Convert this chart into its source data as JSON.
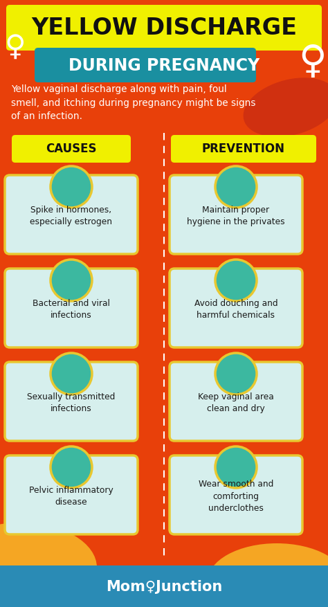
{
  "bg_color": "#E8400A",
  "bg_color2": "#F5A623",
  "title_line1": "YELLOW DISCHARGE",
  "title_line2": "DURING PREGNANCY",
  "title_bg1": "#F0F000",
  "title_bg2": "#1A8FA0",
  "subtitle": "Yellow vaginal discharge along with pain, foul\nsmell, and itching during pregnancy might be signs\nof an infection.",
  "causes_label": "CAUSES",
  "prevention_label": "PREVENTION",
  "label_bg": "#F0F000",
  "causes": [
    "Spike in hormones,\nespecially estrogen",
    "Bacterial and viral\ninfections",
    "Sexually transmitted\ninfections",
    "Pelvic inflammatory\ndisease"
  ],
  "prevention": [
    "Maintain proper\nhygiene in the privates",
    "Avoid douching and\nharmful chemicals",
    "Keep vaginal area\nclean and dry",
    "Wear smooth and\ncomforting\nunderclothes"
  ],
  "card_bg": "#D6EFED",
  "card_border": "#E8C830",
  "icon_bg": "#3CB8A0",
  "footer_bg": "#2A8BB5",
  "footer_text": "Mom",
  "footer_text2": "Junction",
  "text_color": "#1A1A1A",
  "white": "#FFFFFF",
  "figw": 4.74,
  "figh": 8.77,
  "dpi": 100
}
